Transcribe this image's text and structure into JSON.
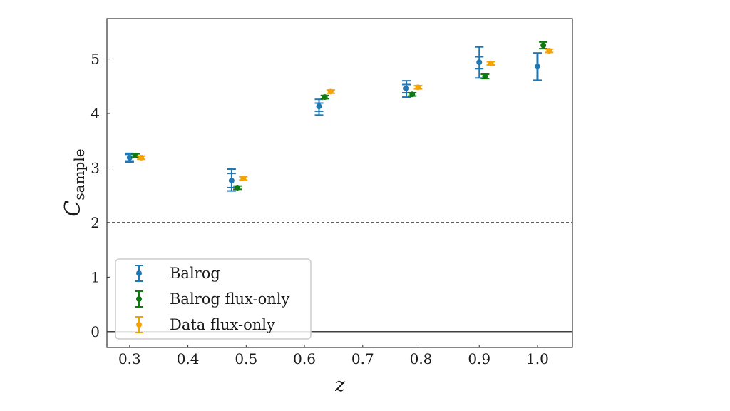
{
  "chart_data": {
    "type": "scatter",
    "title": "",
    "xlabel": "z",
    "ylabel": "C",
    "ylabel_subscript": "sample",
    "xlim": [
      0.261,
      1.06
    ],
    "ylim": [
      -0.29,
      5.74
    ],
    "xticks": [
      0.3,
      0.4,
      0.5,
      0.6,
      0.7,
      0.8,
      0.9,
      1.0
    ],
    "xtick_labels": [
      "0.3",
      "0.4",
      "0.5",
      "0.6",
      "0.7",
      "0.8",
      "0.9",
      "1.0"
    ],
    "yticks": [
      0,
      1,
      2,
      3,
      4,
      5
    ],
    "ytick_labels": [
      "0",
      "1",
      "2",
      "3",
      "4",
      "5"
    ],
    "grid": false,
    "legend_position": "lower-left",
    "reference_lines": [
      {
        "y": 2,
        "style": "dashed",
        "color": "#000000"
      },
      {
        "y": 0,
        "style": "solid",
        "color": "#000000"
      }
    ],
    "series": [
      {
        "name": "Balrog",
        "color": "#1f77b4",
        "x": [
          0.3,
          0.475,
          0.625,
          0.775,
          0.9,
          1.0
        ],
        "y": [
          3.19,
          2.77,
          4.13,
          4.46,
          4.94,
          4.86
        ],
        "yerr_outer_low": [
          3.11,
          2.58,
          3.97,
          4.3,
          4.65,
          4.61
        ],
        "yerr_outer_high": [
          3.27,
          2.98,
          4.26,
          4.6,
          5.22,
          5.11
        ],
        "yerr_inner_low": [
          3.13,
          2.64,
          4.04,
          4.38,
          4.82,
          4.61
        ],
        "yerr_inner_high": [
          3.25,
          2.9,
          4.19,
          4.53,
          5.04,
          5.11
        ]
      },
      {
        "name": "Balrog flux-only",
        "color": "#107a10",
        "x": [
          0.31,
          0.485,
          0.635,
          0.785,
          0.91,
          1.01
        ],
        "y": [
          3.23,
          2.64,
          4.3,
          4.35,
          4.68,
          5.25
        ],
        "yerr_low": [
          3.2,
          2.61,
          4.27,
          4.32,
          4.64,
          5.19
        ],
        "yerr_high": [
          3.26,
          2.67,
          4.33,
          4.38,
          4.72,
          5.31
        ]
      },
      {
        "name": "Data flux-only",
        "color": "#f5a300",
        "x": [
          0.32,
          0.495,
          0.645,
          0.795,
          0.92,
          1.02
        ],
        "y": [
          3.19,
          2.81,
          4.4,
          4.48,
          4.92,
          5.15
        ],
        "yerr_low": [
          3.16,
          2.78,
          4.37,
          4.45,
          4.89,
          5.12
        ],
        "yerr_high": [
          3.22,
          2.84,
          4.43,
          4.51,
          4.95,
          5.18
        ]
      }
    ]
  }
}
